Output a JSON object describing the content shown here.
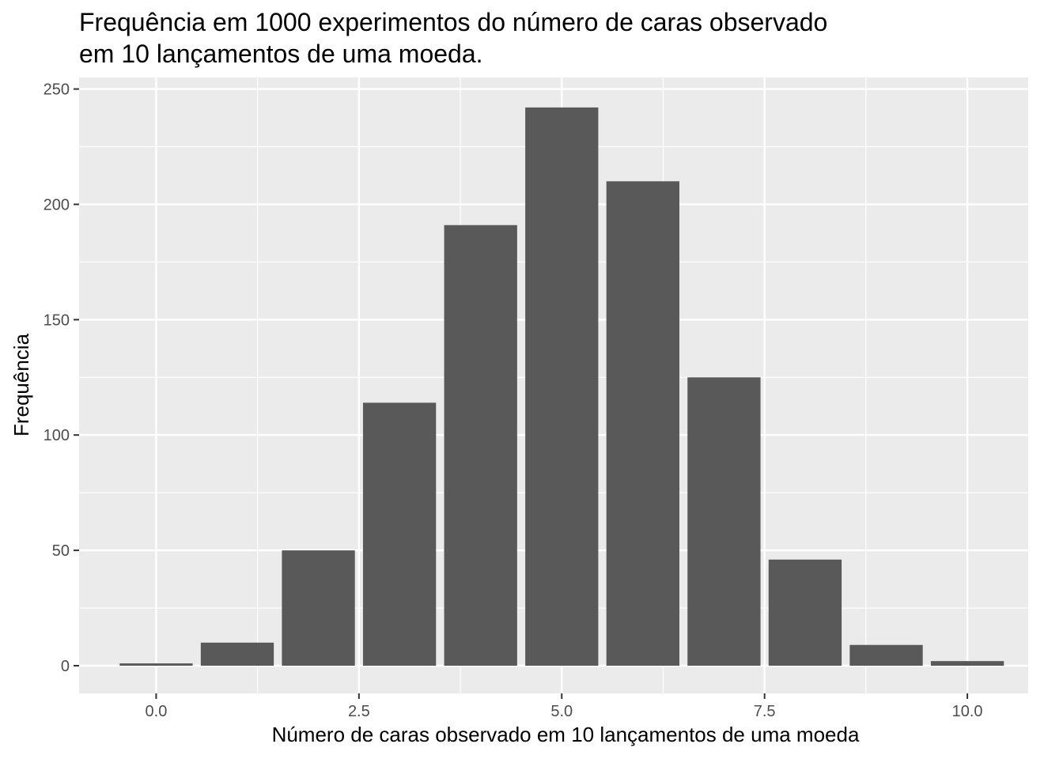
{
  "chart_data": {
    "type": "bar",
    "title_lines": [
      "Frequência em 1000 experimentos do número de caras observado",
      "em 10 lançamentos de uma moeda."
    ],
    "xlabel": "Número de caras observado em 10 lançamentos de uma moeda",
    "ylabel": "Frequência",
    "x": [
      0,
      1,
      2,
      3,
      4,
      5,
      6,
      7,
      8,
      9,
      10
    ],
    "values": [
      1,
      10,
      50,
      114,
      191,
      242,
      210,
      125,
      46,
      9,
      2
    ],
    "xlim": [
      -0.95,
      10.75
    ],
    "ylim": [
      -12,
      255
    ],
    "x_ticks": [
      0,
      2.5,
      5,
      7.5,
      10
    ],
    "x_tick_labels": [
      "0.0",
      "2.5",
      "5.0",
      "7.5",
      "10.0"
    ],
    "y_ticks": [
      0,
      50,
      100,
      150,
      200,
      250
    ],
    "y_tick_labels": [
      "0",
      "50",
      "100",
      "150",
      "200",
      "250"
    ],
    "grid": true,
    "colors": {
      "panel": "#ebebeb",
      "bar": "#595959",
      "grid": "#ffffff"
    }
  }
}
